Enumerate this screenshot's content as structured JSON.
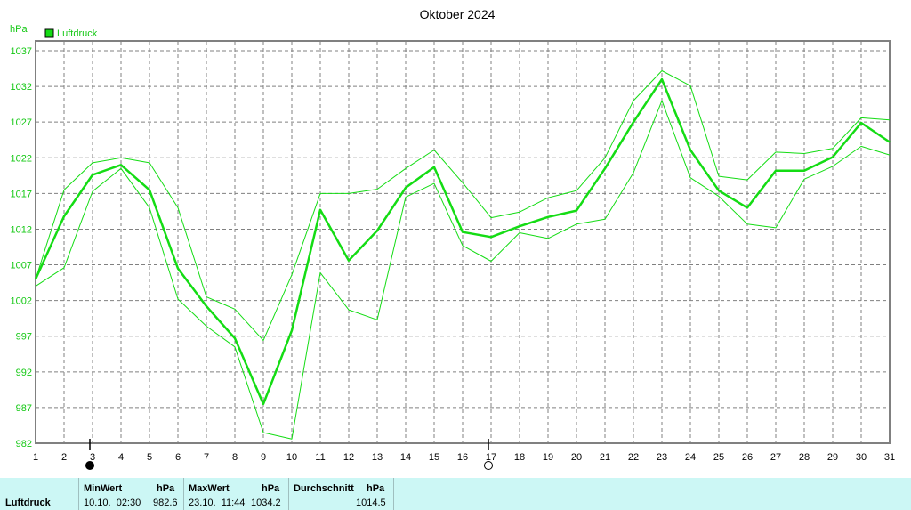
{
  "chart_data": {
    "type": "line",
    "title": "Oktober 2024",
    "ylabel": "hPa",
    "ylim": [
      982,
      1037
    ],
    "yticks": [
      982,
      987,
      992,
      997,
      1002,
      1007,
      1012,
      1017,
      1022,
      1027,
      1032,
      1037
    ],
    "x": [
      1,
      2,
      3,
      4,
      5,
      6,
      7,
      8,
      9,
      10,
      11,
      12,
      13,
      14,
      15,
      16,
      17,
      18,
      19,
      20,
      21,
      22,
      23,
      24,
      25,
      26,
      27,
      28,
      29,
      30,
      31
    ],
    "grid": true,
    "legend": {
      "position": "top-left",
      "entries": [
        "Luftdruck"
      ]
    },
    "series": [
      {
        "name": "Luftdruck",
        "values": [
          1005.0,
          1013.8,
          1019.6,
          1021.0,
          1017.5,
          1006.5,
          1001.2,
          996.7,
          987.5,
          997.8,
          1014.7,
          1007.6,
          1011.8,
          1017.8,
          1020.7,
          1011.6,
          1010.9,
          1012.4,
          1013.7,
          1014.6,
          1020.5,
          1027.0,
          1033.0,
          1023.1,
          1017.4,
          1015.0,
          1020.2,
          1020.2,
          1022.1,
          1026.9,
          1024.2
        ]
      },
      {
        "values": [
          1005.0,
          1017.5,
          1021.3,
          1022.0,
          1021.3,
          1015.0,
          1002.5,
          1000.8,
          996.4,
          1005.6,
          1017.0,
          1017.0,
          1017.6,
          1020.5,
          1023.1,
          1018.5,
          1013.6,
          1014.4,
          1016.4,
          1017.4,
          1022.0,
          1030.0,
          1034.2,
          1032.1,
          1019.4,
          1018.9,
          1022.8,
          1022.6,
          1023.3,
          1027.6,
          1027.3
        ]
      },
      {
        "values": [
          1004.0,
          1006.6,
          1017.3,
          1020.5,
          1015.0,
          1002.2,
          998.4,
          995.5,
          983.5,
          982.6,
          1005.9,
          1000.7,
          999.3,
          1016.5,
          1018.4,
          1009.7,
          1007.5,
          1011.5,
          1010.7,
          1012.7,
          1013.4,
          1019.9,
          1030.0,
          1019.2,
          1016.6,
          1012.7,
          1012.2,
          1019.0,
          1020.8,
          1023.6,
          1022.4
        ]
      }
    ],
    "markers": [
      {
        "x": 3,
        "shape": "filled-circle"
      },
      {
        "x": 17,
        "shape": "open-circle"
      }
    ]
  },
  "stats": {
    "row_label": "Luftdruck",
    "min": {
      "header": "MinWert",
      "unit": "hPa",
      "when": "10.10.  02:30",
      "value": "982.6"
    },
    "max": {
      "header": "MaxWert",
      "unit": "hPa",
      "when": "23.10.  11:44",
      "value": "1034.2"
    },
    "avg": {
      "header": "Durchschnitt",
      "unit": "hPa",
      "value": "1014.5"
    }
  },
  "colors": {
    "line": "#14dc14",
    "plot_border": "#808080",
    "grid": "#808080",
    "stats_bg": "#ccf7f5"
  }
}
